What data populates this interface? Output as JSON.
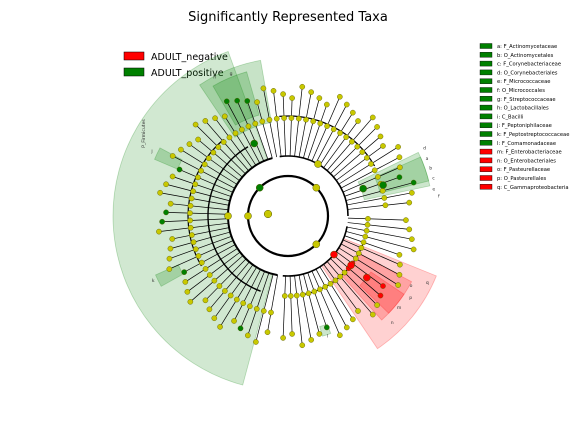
{
  "title": "Significantly Represented Taxa",
  "colors": {
    "negative": "#ff0000",
    "positive": "#008000",
    "node_default": "#c8c800",
    "node_edge": "#555500",
    "branch": "#000000"
  },
  "legend": {
    "negative_label": "ADULT_negative",
    "positive_label": "ADULT_positive"
  },
  "taxa_key": [
    {
      "code": "a",
      "name": "F_Actinomycetaceae",
      "group": "positive"
    },
    {
      "code": "b",
      "name": "O_Actinomycetales",
      "group": "positive"
    },
    {
      "code": "c",
      "name": "F_Corynebacteriaceae",
      "group": "positive"
    },
    {
      "code": "d",
      "name": "O_Corynebacteriales",
      "group": "positive"
    },
    {
      "code": "e",
      "name": "F_Micrococcaceae",
      "group": "positive"
    },
    {
      "code": "f",
      "name": "O_Micrococcales",
      "group": "positive"
    },
    {
      "code": "g",
      "name": "F_Streptococcaceae",
      "group": "positive"
    },
    {
      "code": "h",
      "name": "O_Lactobacillales",
      "group": "positive"
    },
    {
      "code": "i",
      "name": "C_Bacilli",
      "group": "positive"
    },
    {
      "code": "j",
      "name": "F_Peptoniphilaceae",
      "group": "positive"
    },
    {
      "code": "k",
      "name": "F_Peptostreptococcaceae",
      "group": "positive"
    },
    {
      "code": "l",
      "name": "F_Comamonadaceae",
      "group": "positive"
    },
    {
      "code": "m",
      "name": "F_Enterobacteriaceae",
      "group": "negative"
    },
    {
      "code": "n",
      "name": "O_Enterobacteriales",
      "group": "negative"
    },
    {
      "code": "o",
      "name": "F_Pasteurellaceae",
      "group": "negative"
    },
    {
      "code": "p",
      "name": "O_Pasteurellales",
      "group": "negative"
    },
    {
      "code": "q",
      "name": "C_Gammaproteobacteria",
      "group": "negative"
    }
  ],
  "clade_labels": {
    "phylum": "P_Firmicutes",
    "codes": [
      "a",
      "b",
      "c",
      "d",
      "e",
      "f",
      "g",
      "h",
      "j",
      "k",
      "l",
      "m",
      "n",
      "o",
      "p",
      "q"
    ]
  }
}
